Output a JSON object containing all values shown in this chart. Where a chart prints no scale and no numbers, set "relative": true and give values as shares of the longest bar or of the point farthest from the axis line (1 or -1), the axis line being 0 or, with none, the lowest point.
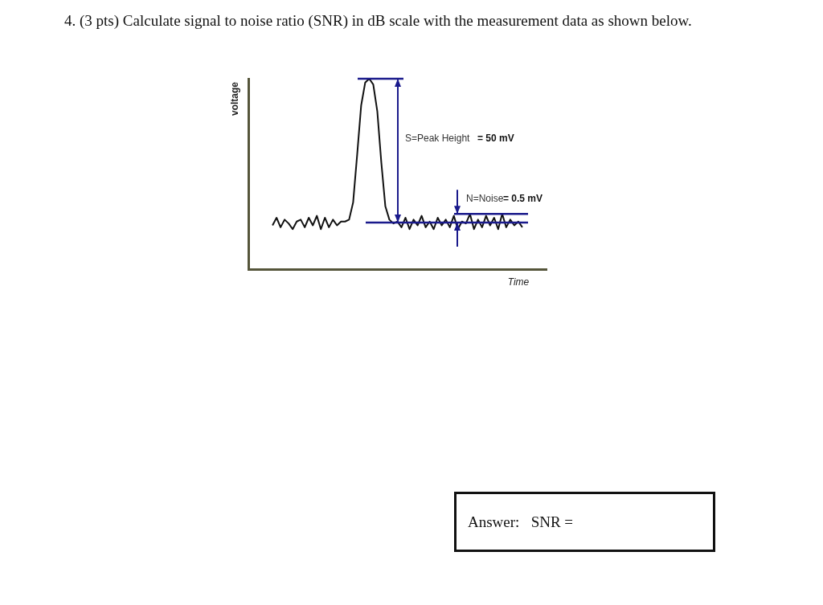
{
  "chart_data": {
    "type": "line",
    "title": "4. (3 pts) Calculate signal to noise ratio (SNR) in dB scale with the measurement data as shown below.",
    "xlabel": "Time",
    "ylabel": "voltage",
    "relative": true,
    "marker": "none",
    "line_style": "solid",
    "categories": [
      null,
      null,
      null,
      null,
      null,
      null,
      null,
      null,
      null,
      null,
      null,
      null,
      null,
      null,
      null,
      null,
      null,
      null,
      null,
      null,
      null,
      null,
      null,
      null,
      null,
      null,
      null,
      null,
      null,
      null,
      null,
      null,
      null,
      null,
      null,
      null,
      null,
      null,
      null,
      null,
      null,
      null,
      null,
      null,
      null,
      null,
      null,
      null,
      null,
      null,
      null,
      null,
      null,
      null,
      null,
      null,
      null,
      null,
      null,
      null,
      null,
      null,
      null,
      null,
      null,
      null,
      null,
      null,
      null,
      null,
      null,
      null,
      null,
      null,
      null
    ],
    "series": [
      {
        "color": "#111111",
        "values": [
          null,
          null,
          null,
          null,
          null,
          null,
          0.23,
          0.27,
          0.22,
          0.26,
          0.24,
          0.21,
          0.25,
          0.26,
          0.22,
          0.27,
          0.23,
          0.28,
          0.21,
          0.27,
          0.22,
          0.26,
          0.23,
          0.25,
          0.25,
          0.26,
          0.35,
          0.6,
          0.86,
          0.98,
          1,
          0.97,
          0.83,
          0.56,
          0.33,
          0.26,
          0.24,
          0.25,
          0.22,
          0.27,
          0.21,
          0.26,
          0.23,
          0.28,
          0.22,
          0.25,
          0.21,
          0.27,
          0.23,
          0.26,
          0.22,
          0.28,
          0.21,
          0.25,
          0.24,
          0.29,
          0.21,
          0.26,
          0.22,
          0.28,
          0.23,
          0.27,
          0.21,
          0.29,
          0.22,
          0.26,
          0.23,
          0.25,
          0.22,
          null,
          null,
          null,
          null,
          null,
          null
        ]
      }
    ],
    "ref_lines": [
      {
        "axis": "y",
        "value": 1,
        "color": "#1a1a8c"
      },
      {
        "axis": "y",
        "value": 0.245,
        "color": "#1a1a8c"
      },
      {
        "axis": "y",
        "value": 0.29,
        "color": "#1a1a8c"
      }
    ],
    "annotations": [
      "S=Peak Height",
      "= 50 mV",
      "N=Noise",
      "= 0.5 mV",
      "Answer:   SNR ="
    ]
  }
}
